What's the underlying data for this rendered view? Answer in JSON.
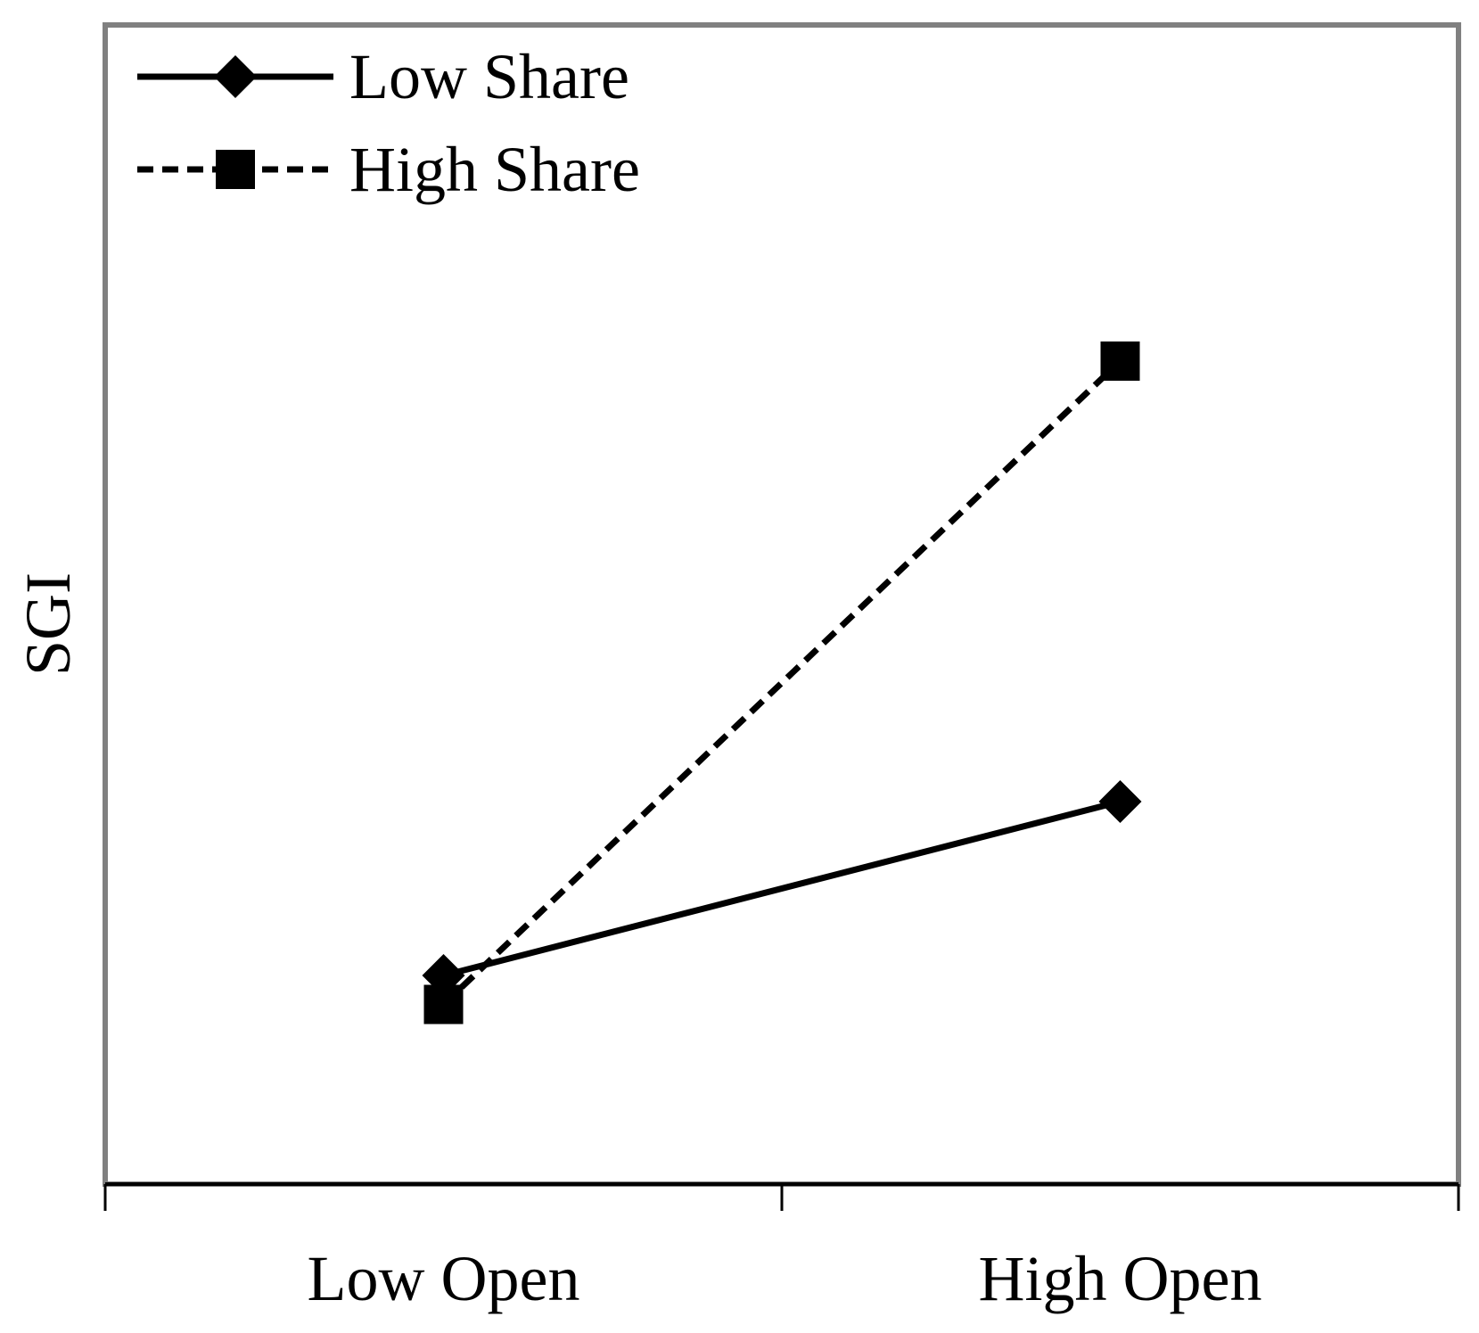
{
  "chart_data": {
    "type": "line",
    "title": "",
    "xlabel": "",
    "ylabel": "SGI",
    "categories": [
      "Low Open",
      "High Open"
    ],
    "ylim": [
      0,
      10
    ],
    "y_ticks_labeled": false,
    "grid": false,
    "legend_position": "top-left",
    "series": [
      {
        "name": "Low Share",
        "values": [
          1.8,
          3.3
        ],
        "line_style": "solid",
        "marker": "diamond",
        "color": "#000000"
      },
      {
        "name": "High Share",
        "values": [
          1.55,
          7.1
        ],
        "line_style": "dashed",
        "marker": "square",
        "color": "#000000"
      }
    ]
  },
  "colors": {
    "frame": "#808080",
    "ink": "#000000",
    "background": "#ffffff"
  }
}
